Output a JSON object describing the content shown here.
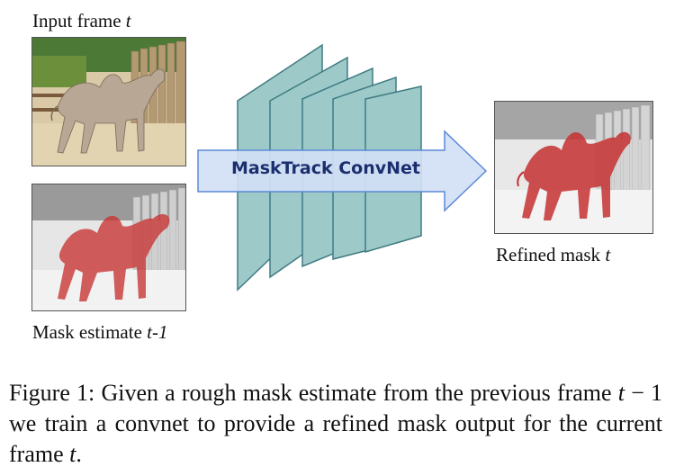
{
  "input_frame": {
    "label": "Input frame",
    "var": "t"
  },
  "mask_estimate": {
    "label": "Mask estimate",
    "var": "t-1"
  },
  "refined_mask": {
    "label": "Refined mask",
    "var": "t"
  },
  "network": {
    "label": "MaskTrack ConvNet"
  },
  "caption": {
    "prefix": "Figure 1:  Given a rough mask estimate from the previous frame",
    "var1": "t",
    "middle": "− 1 we train a convnet to provide a refined mask output for the current frame",
    "var2": "t",
    "suffix": "."
  },
  "colors": {
    "slab_fill": "#9ec9c9",
    "slab_stroke": "#3f7c82",
    "arrow_fill": "#d3e0f5",
    "arrow_stroke": "#5b8ad6",
    "mask_red": "#c83232"
  }
}
